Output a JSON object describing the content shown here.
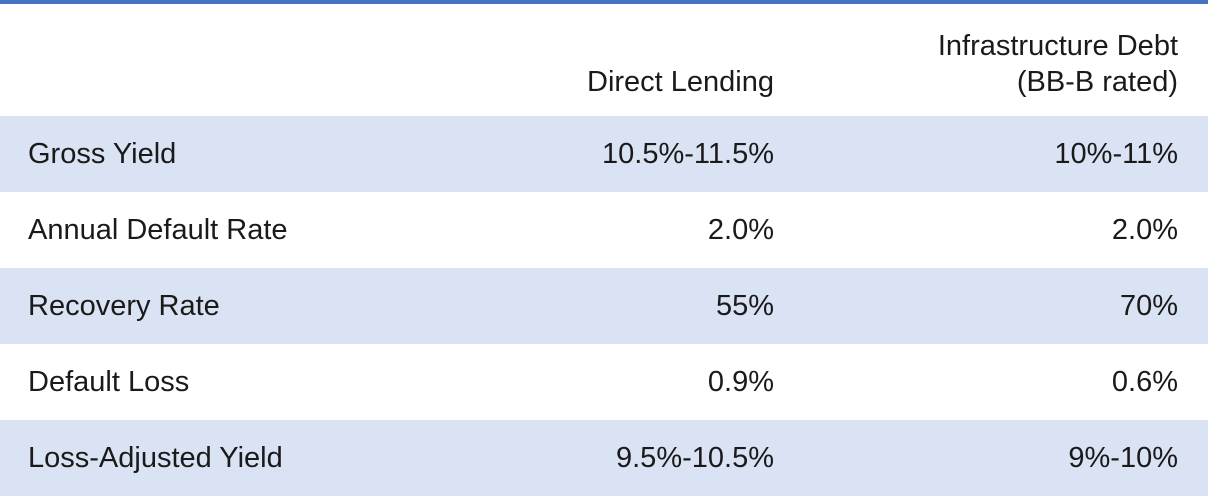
{
  "colors": {
    "top_rule": "#4472c4",
    "band": "#dae3f3",
    "plain": "#ffffff",
    "text": "#1a1a1a"
  },
  "header": {
    "col1": "Direct Lending",
    "col2_line1": "Infrastructure Debt",
    "col2_line2": "(BB-B rated)"
  },
  "rows": [
    {
      "label": "Gross Yield",
      "direct_lending": "10.5%-11.5%",
      "infrastructure_debt": "10%-11%",
      "shaded": true
    },
    {
      "label": "Annual Default Rate",
      "direct_lending": "2.0%",
      "infrastructure_debt": "2.0%",
      "shaded": false
    },
    {
      "label": "Recovery Rate",
      "direct_lending": "55%",
      "infrastructure_debt": "70%",
      "shaded": true
    },
    {
      "label": "Default Loss",
      "direct_lending": "0.9%",
      "infrastructure_debt": "0.6%",
      "shaded": false
    },
    {
      "label": "Loss-Adjusted Yield",
      "direct_lending": "9.5%-10.5%",
      "infrastructure_debt": "9%-10%",
      "shaded": true
    }
  ]
}
